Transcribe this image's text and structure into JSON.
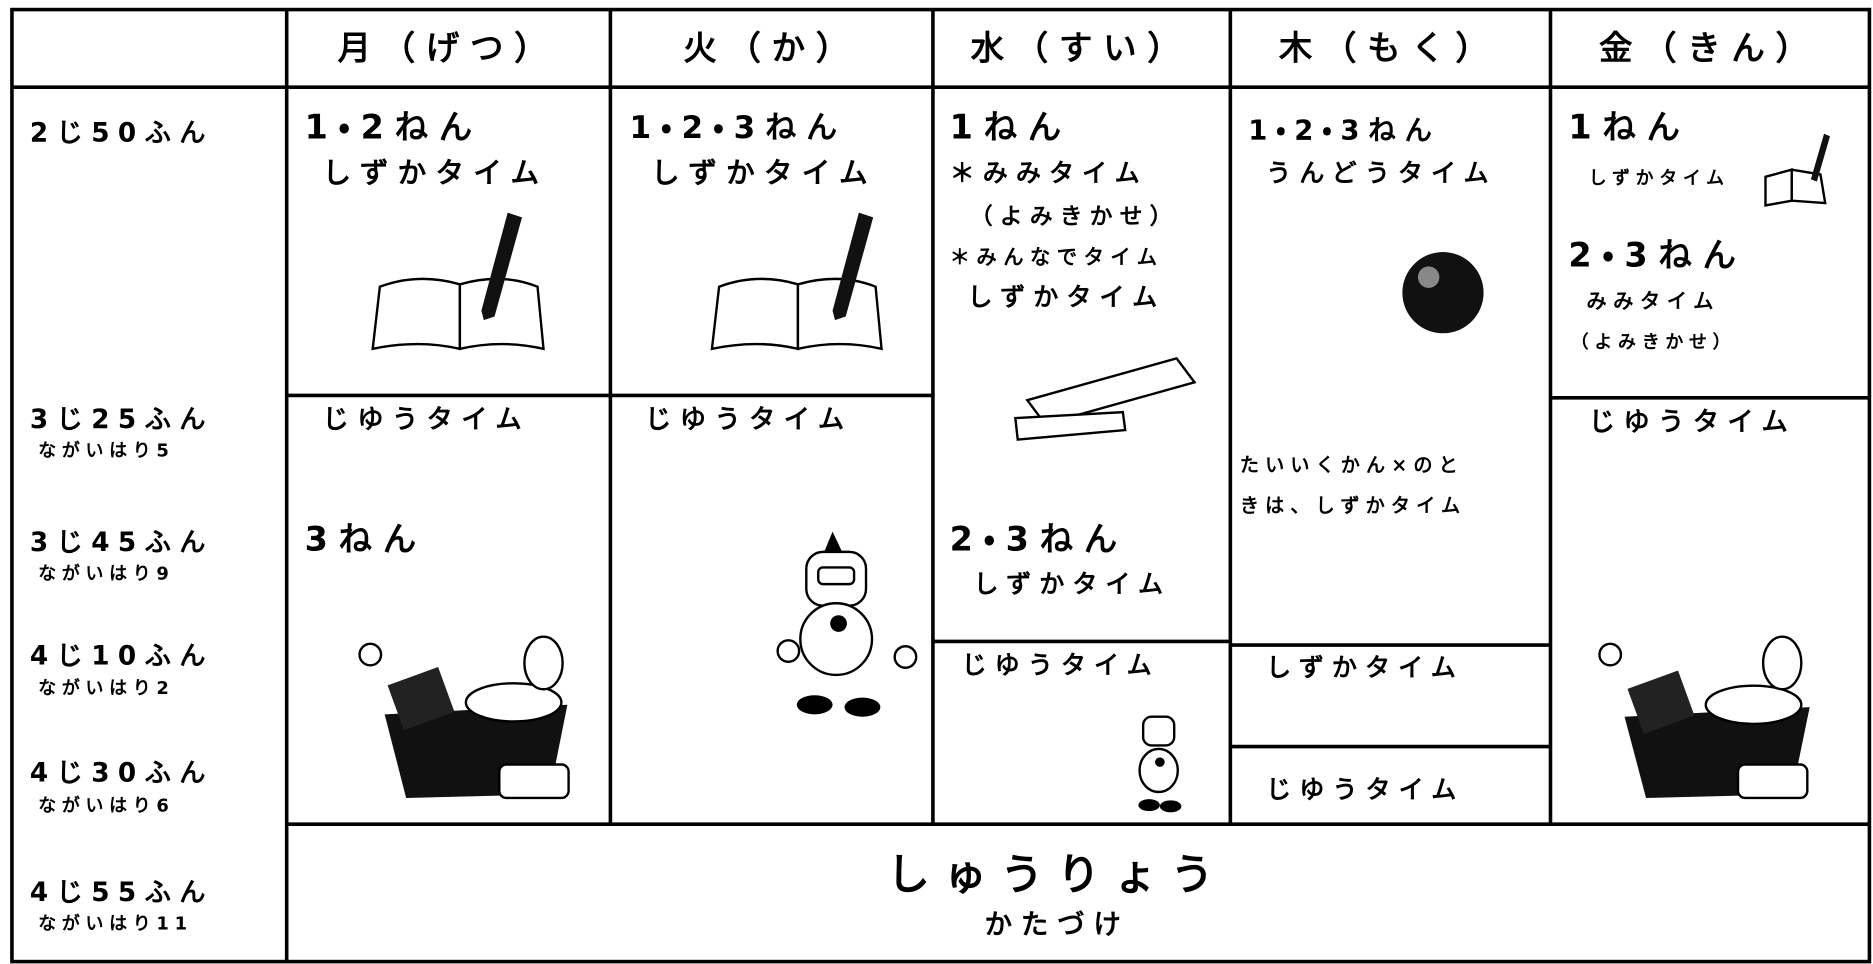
{
  "header": {
    "days": [
      "月（げつ）",
      "火（か）",
      "水（すい）",
      "木（もく）",
      "金（きん）"
    ]
  },
  "times": [
    {
      "time": "2じ50ふん"
    },
    {
      "time": "3じ25ふん",
      "hand": "ながいはり5"
    },
    {
      "time": "3じ45ふん",
      "hand": "ながいはり9"
    },
    {
      "time": "4じ10ふん",
      "hand": "ながいはり2"
    },
    {
      "time": "4じ30ふん",
      "hand": "ながいはり6"
    },
    {
      "time": "4じ55ふん",
      "hand": "ながいはり11"
    }
  ],
  "monday": [
    [
      "1・2ねん",
      "しずかタイム"
    ],
    [
      "じゆうタイム",
      "3ねん"
    ]
  ],
  "tuesday": [
    [
      "1・2・3ねん",
      "しずかタイム"
    ],
    [
      "じゆうタイム"
    ]
  ],
  "wednesday": [
    [
      "1ねん",
      "＊みみタイム",
      "（よみきかせ）",
      "＊みんなでタイム",
      "しずかタイム",
      "2・3ねん",
      "しずかタイム"
    ],
    [
      "じゆうタイム"
    ]
  ],
  "thursday": [
    [
      "1・2・3ねん",
      "うんどうタイム",
      "たいいくかん×のと",
      "きは、しずかタイム"
    ],
    [
      "しずかタイム"
    ],
    [
      "じゆうタイム"
    ]
  ],
  "friday": [
    [
      "1ねん",
      "しずかタイム",
      "2・3ねん",
      "みみタイム",
      "（よみきかせ）"
    ],
    [
      "じゆうタイム"
    ]
  ],
  "closing": [
    "しゅうりょう",
    "かたづけ"
  ]
}
